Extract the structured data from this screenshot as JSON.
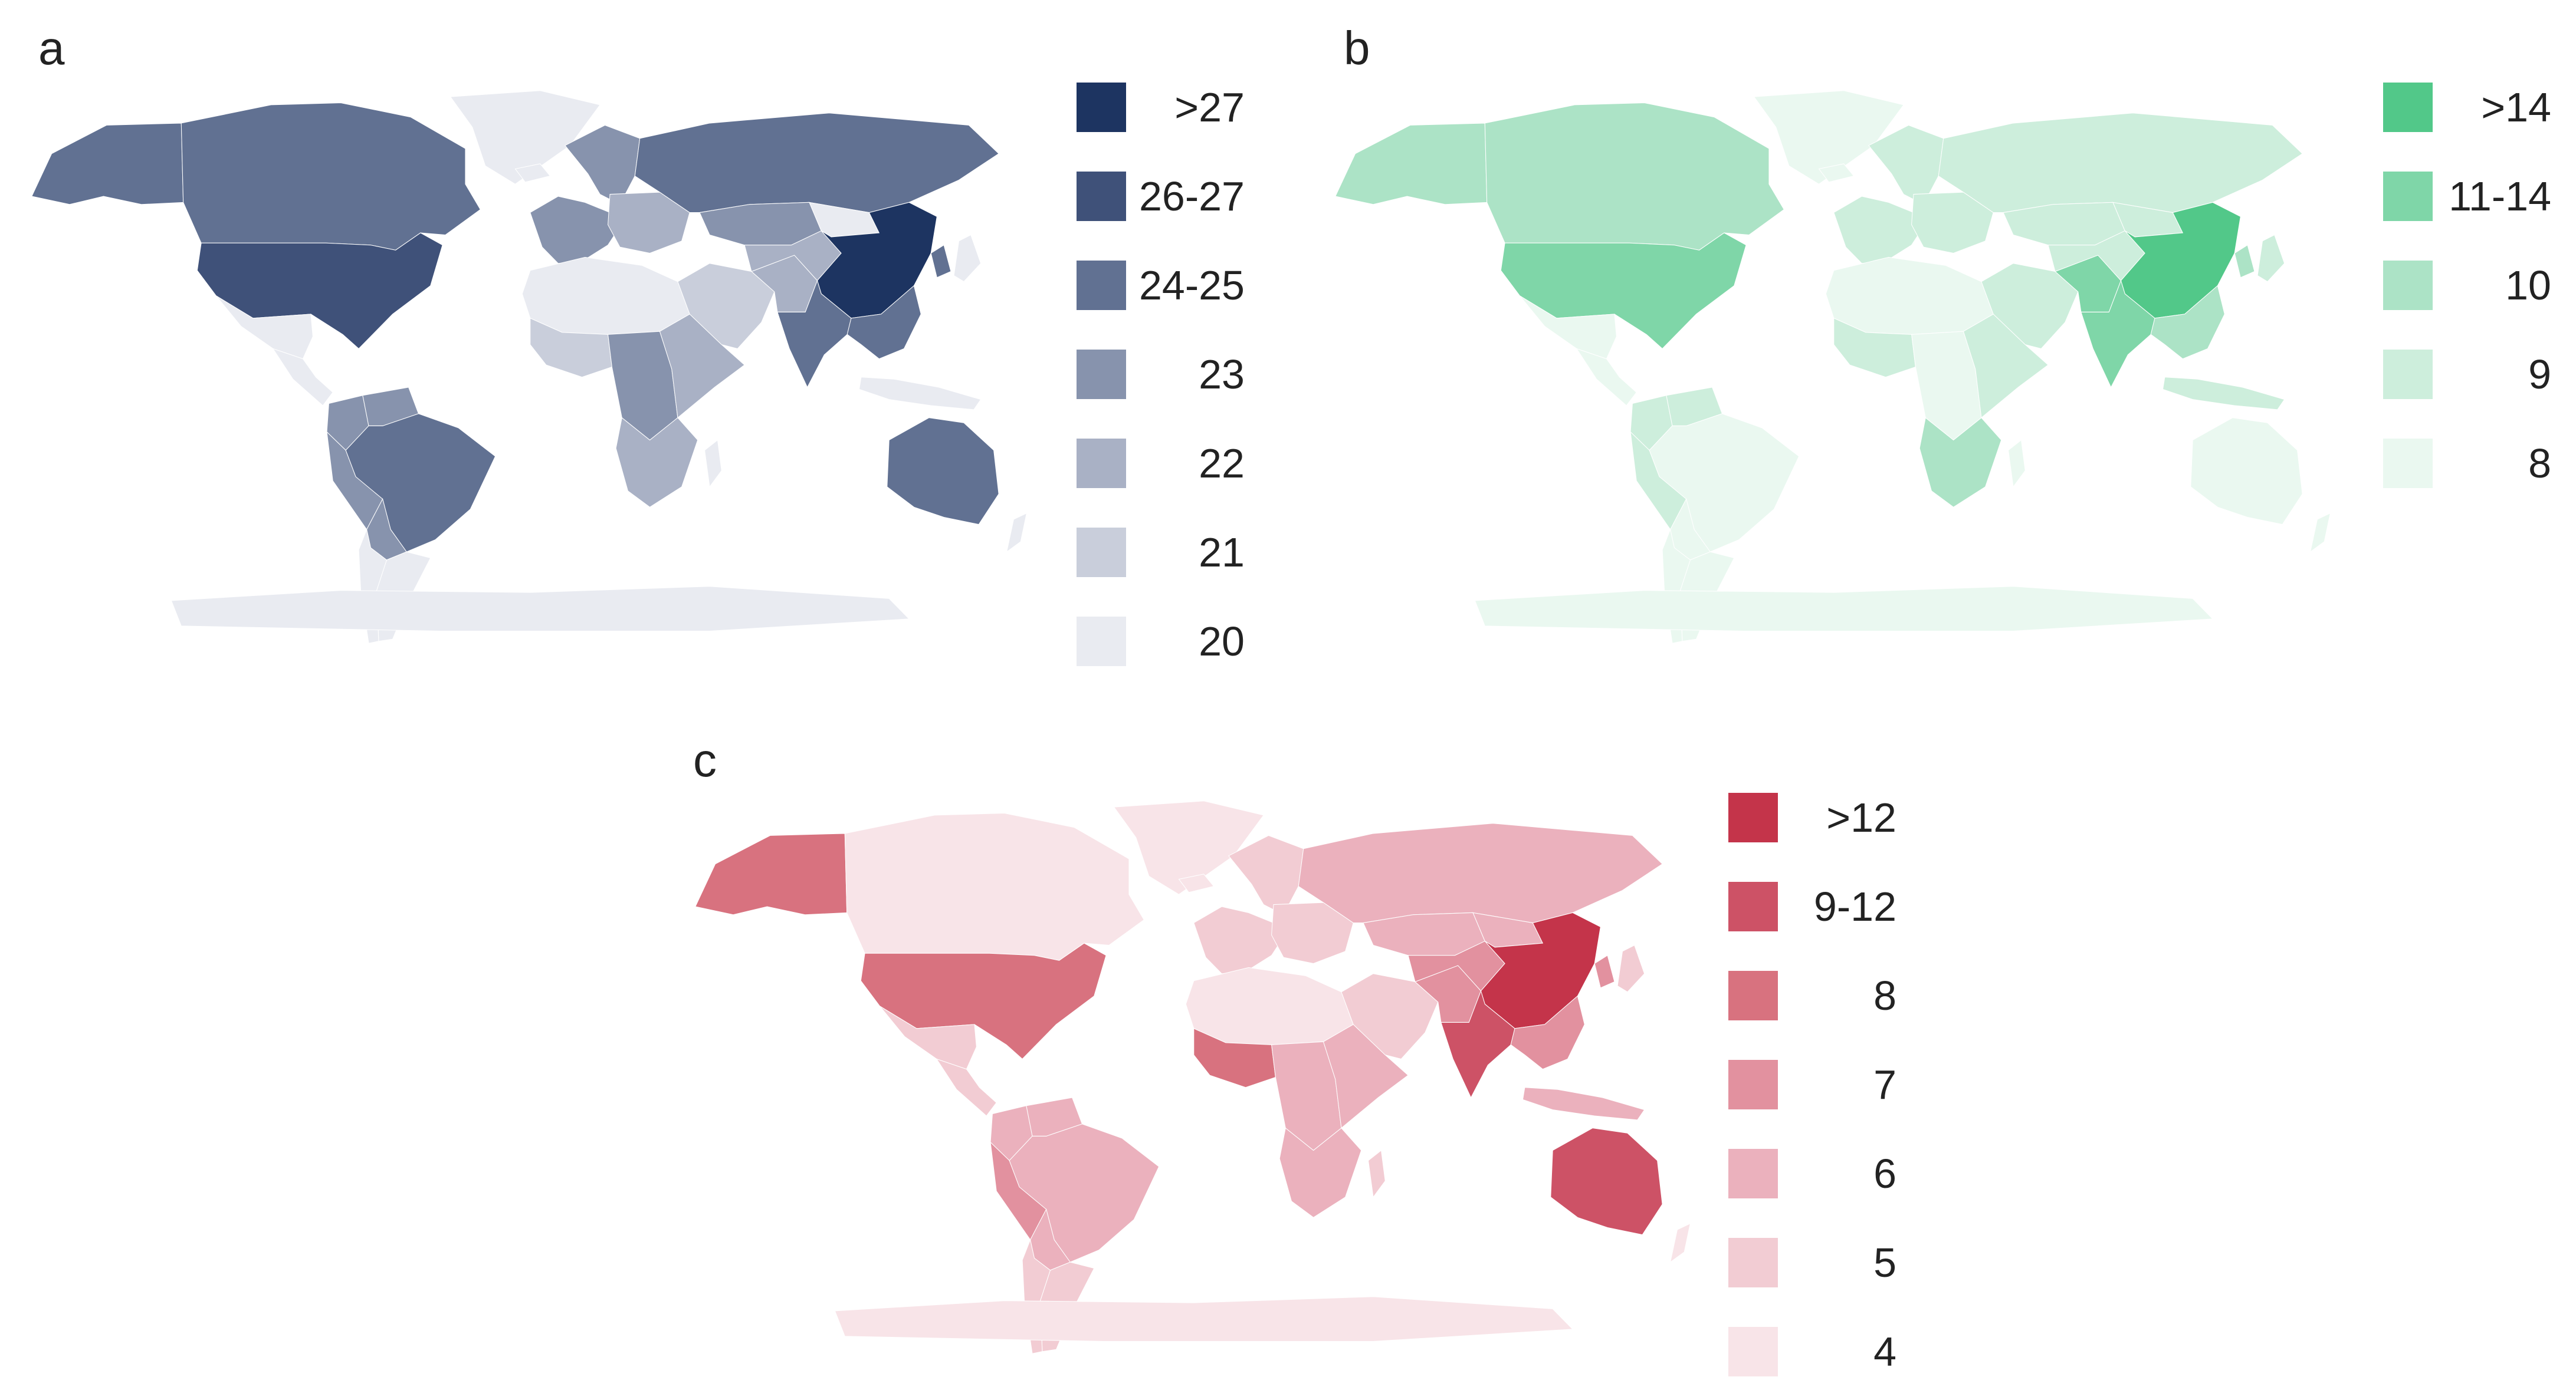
{
  "panels": [
    {
      "letter": "a",
      "palette": [
        "#e9ebf1",
        "#c9cedb",
        "#a9b1c5",
        "#8793ad",
        "#617192",
        "#3f5179",
        "#1d3461"
      ],
      "legend": [
        ">27",
        "26-27",
        "24-25",
        "23",
        "22",
        "21",
        "20"
      ],
      "regions": {
        "greenland": 0,
        "canada": 4,
        "usa": 5,
        "alaska": 4,
        "mexico": 0,
        "central_america": 0,
        "colombia": 3,
        "venezuela": 3,
        "brazil": 4,
        "peru": 3,
        "bolivia": 3,
        "argentina": 0,
        "chile": 0,
        "iceland": 0,
        "scandinavia": 3,
        "western_europe": 3,
        "eastern_europe": 2,
        "north_africa": 0,
        "west_africa": 1,
        "central_africa": 3,
        "east_africa": 2,
        "southern_africa": 2,
        "madagascar": 0,
        "middle_east": 1,
        "iran": 2,
        "russia": 4,
        "kazakhstan": 3,
        "central_asia": 2,
        "mongolia": 0,
        "china": 6,
        "india": 4,
        "southeast_asia": 4,
        "indonesia": 0,
        "japan": 0,
        "korea": 4,
        "australia": 4,
        "new_zealand": 0,
        "antarctica": 0
      }
    },
    {
      "letter": "b",
      "palette": [
        "#eaf8f0",
        "#cdeedc",
        "#ace3c6",
        "#7fd6a8",
        "#52c889"
      ],
      "legend": [
        ">14",
        "11-14",
        "10",
        "9",
        "8"
      ],
      "regions": {
        "greenland": 0,
        "canada": 2,
        "usa": 3,
        "alaska": 2,
        "mexico": 0,
        "central_america": 0,
        "colombia": 1,
        "venezuela": 1,
        "brazil": 0,
        "peru": 1,
        "bolivia": 0,
        "argentina": 0,
        "chile": 0,
        "iceland": 0,
        "scandinavia": 1,
        "western_europe": 1,
        "eastern_europe": 1,
        "north_africa": 0,
        "west_africa": 1,
        "central_africa": 0,
        "east_africa": 1,
        "southern_africa": 2,
        "madagascar": 0,
        "middle_east": 1,
        "iran": 3,
        "russia": 1,
        "kazakhstan": 1,
        "central_asia": 1,
        "mongolia": 1,
        "china": 4,
        "india": 3,
        "southeast_asia": 2,
        "indonesia": 1,
        "japan": 1,
        "korea": 2,
        "australia": 0,
        "new_zealand": 0,
        "antarctica": 0
      }
    },
    {
      "letter": "c",
      "palette": [
        "#f8e4e8",
        "#f2ccd3",
        "#ebb1bd",
        "#e2919f",
        "#d8727f",
        "#cd5266",
        "#c4344a"
      ],
      "legend": [
        ">12",
        "9-12",
        "8",
        "7",
        "6",
        "5",
        "4"
      ],
      "regions": {
        "greenland": 0,
        "canada": 0,
        "usa": 4,
        "alaska": 4,
        "mexico": 1,
        "central_america": 1,
        "colombia": 2,
        "venezuela": 2,
        "brazil": 2,
        "peru": 3,
        "bolivia": 2,
        "argentina": 1,
        "chile": 1,
        "iceland": 0,
        "scandinavia": 1,
        "western_europe": 1,
        "eastern_europe": 1,
        "north_africa": 0,
        "west_africa": 4,
        "central_africa": 2,
        "east_africa": 2,
        "southern_africa": 2,
        "madagascar": 1,
        "middle_east": 1,
        "iran": 3,
        "russia": 2,
        "kazakhstan": 2,
        "central_asia": 3,
        "mongolia": 2,
        "china": 6,
        "india": 5,
        "southeast_asia": 3,
        "indonesia": 2,
        "japan": 1,
        "korea": 3,
        "australia": 5,
        "new_zealand": 0,
        "antarctica": 0
      }
    }
  ]
}
